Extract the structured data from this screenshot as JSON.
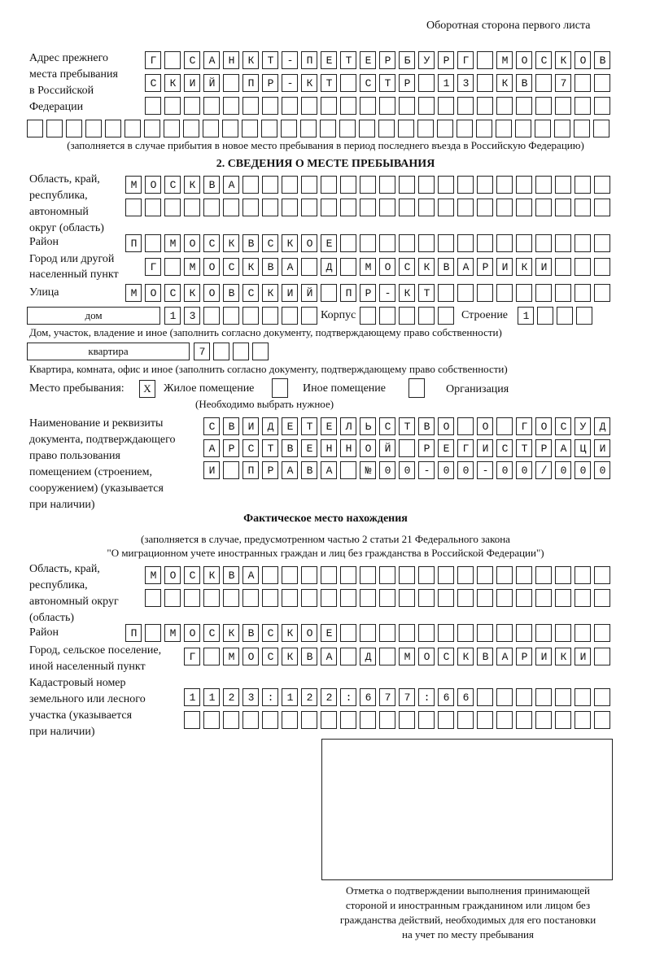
{
  "header": {
    "side": "Оборотная сторона первого листа"
  },
  "prev_address": {
    "label": [
      "Адрес прежнего",
      "места пребывания",
      "в Российской",
      "Федерации"
    ],
    "rows": [
      "Г САНКТ-ПЕТЕРБУРГ МОСКОВ",
      "СКИЙ ПР-КТ СТР 13 КВ 7  ",
      "                        ",
      "                              "
    ],
    "note": "(заполняется в случае прибытия в новое место пребывания в период последнего въезда в Российскую Федерацию)"
  },
  "section2": {
    "title": "2. СВЕДЕНИЯ О МЕСТЕ ПРЕБЫВАНИЯ",
    "region_label": [
      "Область, край,",
      "республика,",
      "автономный",
      "округ (область)"
    ],
    "region_rows": [
      "МОСКВА                   ",
      "                         "
    ],
    "district_label": "Район",
    "district_row": "П МОСКВСКОЕ              ",
    "city_label": [
      "Город или другой",
      "населенный пункт"
    ],
    "city_row": "Г МОСКВА Д МОСКВАРИКИ   ",
    "street_label": "Улица",
    "street_row": "МОСКОВСКИЙ ПР-КТ         ",
    "house_type": "дом",
    "house_row": "13      ",
    "korpus_label": "Корпус",
    "korpus_row": "     ",
    "building_label": "Строение",
    "building_row": "1   ",
    "house_note": "Дом, участок, владение и иное (заполнить согласно документу, подтверждающему право собственности)",
    "flat_type": "квартира",
    "flat_row": "7   ",
    "flat_note": "Квартира, комната, офис и иное (заполнить согласно документу, подтверждающему право собственности)",
    "place_label": "Место пребывания:",
    "place_options": [
      {
        "label": "Жилое помещение",
        "mark": "X"
      },
      {
        "label": "Иное помещение",
        "mark": ""
      },
      {
        "label": "Организация",
        "mark": ""
      }
    ],
    "place_note": "(Необходимо выбрать нужное)",
    "doc_label": [
      "Наименование и реквизиты",
      "документа, подтверждающего",
      "право пользования",
      "помещением (строением,",
      "сооружением) (указывается",
      "при наличии)"
    ],
    "doc_rows": [
      "СВИДЕТЕЛЬСТВО О ГОСУД",
      "АРСТВЕННОЙ РЕГИСТРАЦИ",
      "И ПРАВА №00-00-00/000"
    ]
  },
  "actual": {
    "title": "Фактическое место нахождения",
    "note1": "(заполняется в случае, предусмотренном частью 2 статьи 21 Федерального закона",
    "note2": "\"О миграционном учете иностранных граждан и лиц без гражданства в Российской Федерации\")",
    "region_label": [
      "Область, край,",
      "республика,",
      "автономный округ",
      "(область)"
    ],
    "region_rows": [
      "МОСКВА                  ",
      "                        "
    ],
    "district_label": "Район",
    "district_row": "П МОСКВСКОЕ              ",
    "city_label": [
      "Город, сельское поселение,",
      "иной населенный пункт"
    ],
    "city_row": "Г МОСКВА Д МОСКВАРИКИ ",
    "cadastre_label": [
      "Кадастровый номер",
      "земельного или лесного",
      "участка (указывается",
      "при наличии)"
    ],
    "cadastre_rows": [
      "1123:122:677:66       ",
      "                      "
    ]
  },
  "confirmation": {
    "caption": [
      "Отметка о подтверждении выполнения принимающей",
      "стороной и иностранным гражданином или лицом без",
      "гражданства действий, необходимых для его постановки",
      "на учет по месту пребывания"
    ]
  }
}
